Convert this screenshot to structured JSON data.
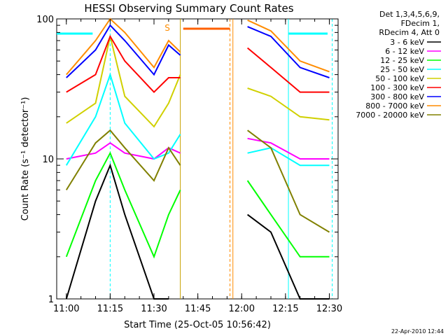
{
  "chart_data": {
    "type": "line",
    "title": "HESSI Observing Summary Count Rates",
    "xlabel": "Start Time (25-Oct-05 10:56:42)",
    "ylabel": "Count Rate (s⁻¹ detector⁻¹)",
    "y_scale": "log",
    "ylim": [
      1,
      100
    ],
    "xlim": [
      "10:56:42",
      "12:33:00"
    ],
    "x_ticks": [
      "11:00",
      "11:15",
      "11:30",
      "11:45",
      "12:00",
      "12:15",
      "12:30"
    ],
    "y_ticks": [
      "1",
      "10",
      "100"
    ],
    "legend_header": [
      "Det 1,3,4,5,6,9,",
      "FDecim 1,",
      "RDecim 4, Att 0"
    ],
    "legend_position": "right",
    "saa_marker": "S",
    "footer_date": "22-Apr-2010 12:44",
    "x": [
      "11:00",
      "11:10",
      "11:15",
      "11:20",
      "11:30",
      "11:35",
      "11:39",
      "12:02",
      "12:10",
      "12:20",
      "12:30"
    ],
    "series": [
      {
        "name": "3 - 6 keV",
        "color": "#000000",
        "values": [
          1.0,
          5.0,
          9.0,
          4.0,
          1.0,
          1.0,
          null,
          4.0,
          3.0,
          1.0,
          1.0
        ]
      },
      {
        "name": "6 - 12 keV",
        "color": "#ff00ff",
        "values": [
          10,
          11,
          13,
          11,
          10,
          12,
          11,
          14,
          13,
          10,
          10
        ]
      },
      {
        "name": "12 - 25 keV",
        "color": "#00ff00",
        "values": [
          2.0,
          7.0,
          11.0,
          6.0,
          2.0,
          4.0,
          6.0,
          7.0,
          4.0,
          2.0,
          2.0
        ]
      },
      {
        "name": "25 - 50 keV",
        "color": "#00ffff",
        "values": [
          9,
          20,
          40,
          18,
          10,
          11,
          15,
          11,
          12,
          9,
          9
        ]
      },
      {
        "name": "50 - 100 keV",
        "color": "#d0d000",
        "values": [
          18,
          25,
          75,
          28,
          17,
          25,
          40,
          32,
          28,
          20,
          19
        ]
      },
      {
        "name": "100 - 300 keV",
        "color": "#ff0000",
        "values": [
          30,
          40,
          75,
          50,
          30,
          38,
          38,
          62,
          45,
          30,
          30
        ]
      },
      {
        "name": "300 - 800 keV",
        "color": "#0000ff",
        "values": [
          38,
          60,
          90,
          70,
          40,
          65,
          55,
          88,
          75,
          45,
          38
        ]
      },
      {
        "name": "800 - 7000 keV",
        "color": "#ff8c00",
        "values": [
          40,
          70,
          100,
          80,
          45,
          70,
          58,
          98,
          82,
          50,
          42
        ]
      },
      {
        "name": "7000 - 20000 keV",
        "color": "#808000",
        "values": [
          6.0,
          13.0,
          16.0,
          12.0,
          7.0,
          12.0,
          9.0,
          16.0,
          12.0,
          4.0,
          3.0
        ]
      }
    ]
  }
}
